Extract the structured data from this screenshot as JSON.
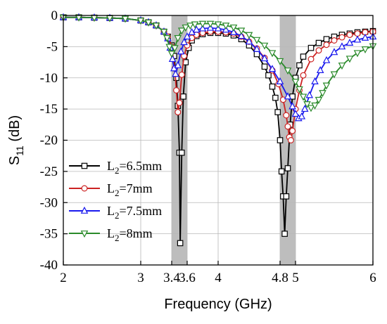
{
  "chart_data": {
    "type": "line",
    "title": "",
    "xlabel": "Frequency (GHz)",
    "ylabel_main": "S",
    "ylabel_sub": "11",
    "ylabel_unit": " (dB)",
    "xlim": [
      2,
      6
    ],
    "ylim": [
      -40,
      0
    ],
    "xticks": [
      2,
      3,
      3.4,
      3.6,
      4,
      4.8,
      5,
      6
    ],
    "xtick_labels": [
      "2",
      "3",
      "3.4",
      "3.6",
      "4",
      "4.8",
      "5",
      "6"
    ],
    "yticks": [
      0,
      -5,
      -10,
      -15,
      -20,
      -25,
      -30,
      -35,
      -40
    ],
    "ytick_labels": [
      "0",
      "-5",
      "-10",
      "-15",
      "-20",
      "-25",
      "-30",
      "-35",
      "-40"
    ],
    "grid": true,
    "legend_position": "bottom-left",
    "shaded_bands": [
      [
        3.4,
        3.6
      ],
      [
        4.8,
        5.0
      ]
    ],
    "band_color": "#bdbdbd",
    "series": [
      {
        "name": "L2=6.5mm",
        "legend_main": "L",
        "legend_sub": "2",
        "legend_value": "=6.5mm",
        "color": "#000000",
        "marker": "square",
        "x": [
          2.0,
          2.2,
          2.4,
          2.6,
          2.8,
          3.0,
          3.1,
          3.2,
          3.3,
          3.35,
          3.4,
          3.43,
          3.46,
          3.48,
          3.5,
          3.51,
          3.53,
          3.55,
          3.58,
          3.62,
          3.66,
          3.72,
          3.8,
          3.9,
          4.0,
          4.1,
          4.2,
          4.3,
          4.4,
          4.5,
          4.6,
          4.65,
          4.7,
          4.74,
          4.77,
          4.8,
          4.82,
          4.84,
          4.86,
          4.88,
          4.9,
          4.93,
          4.96,
          5.0,
          5.05,
          5.1,
          5.2,
          5.3,
          5.4,
          5.5,
          5.6,
          5.7,
          5.8,
          5.9,
          6.0
        ],
        "y": [
          -0.3,
          -0.3,
          -0.35,
          -0.4,
          -0.5,
          -0.8,
          -1.1,
          -1.6,
          -2.6,
          -3.4,
          -4.8,
          -6.5,
          -10.0,
          -14.5,
          -22.0,
          -36.5,
          -22.0,
          -13.0,
          -7.5,
          -5.2,
          -4.0,
          -3.3,
          -3.0,
          -2.8,
          -2.8,
          -2.9,
          -3.2,
          -3.8,
          -4.8,
          -6.2,
          -8.2,
          -9.6,
          -11.4,
          -13.2,
          -15.5,
          -20.0,
          -25.0,
          -29.0,
          -35.0,
          -29.0,
          -24.5,
          -17.5,
          -13.0,
          -10.0,
          -8.0,
          -6.6,
          -5.2,
          -4.4,
          -3.8,
          -3.4,
          -3.1,
          -2.9,
          -2.7,
          -2.6,
          -2.5
        ]
      },
      {
        "name": "L2=7mm",
        "legend_main": "L",
        "legend_sub": "2",
        "legend_value": "=7mm",
        "color": "#cc2222",
        "marker": "circle",
        "x": [
          2.0,
          2.2,
          2.4,
          2.6,
          2.8,
          3.0,
          3.1,
          3.2,
          3.3,
          3.35,
          3.4,
          3.44,
          3.46,
          3.48,
          3.5,
          3.53,
          3.56,
          3.6,
          3.66,
          3.72,
          3.8,
          3.9,
          4.0,
          4.1,
          4.2,
          4.3,
          4.4,
          4.5,
          4.6,
          4.7,
          4.78,
          4.84,
          4.88,
          4.9,
          4.92,
          4.94,
          4.96,
          5.0,
          5.05,
          5.1,
          5.2,
          5.3,
          5.4,
          5.5,
          5.6,
          5.7,
          5.8,
          5.9,
          6.0
        ],
        "y": [
          -0.3,
          -0.3,
          -0.35,
          -0.4,
          -0.5,
          -0.8,
          -1.1,
          -1.6,
          -2.6,
          -3.4,
          -5.0,
          -8.5,
          -12.0,
          -15.5,
          -14.0,
          -9.5,
          -6.5,
          -4.8,
          -3.6,
          -3.1,
          -2.8,
          -2.6,
          -2.6,
          -2.7,
          -2.9,
          -3.4,
          -4.2,
          -5.3,
          -6.8,
          -8.8,
          -11.0,
          -13.5,
          -16.0,
          -17.8,
          -19.5,
          -20.0,
          -18.5,
          -15.0,
          -12.0,
          -9.6,
          -7.0,
          -5.6,
          -4.7,
          -4.0,
          -3.5,
          -3.1,
          -2.9,
          -2.7,
          -2.6
        ]
      },
      {
        "name": "L2=7.5mm",
        "legend_main": "L",
        "legend_sub": "2",
        "legend_value": "=7.5mm",
        "color": "#1a1aee",
        "marker": "triangle-up",
        "x": [
          2.0,
          2.2,
          2.4,
          2.6,
          2.8,
          3.0,
          3.1,
          3.2,
          3.3,
          3.35,
          3.38,
          3.41,
          3.43,
          3.45,
          3.48,
          3.52,
          3.56,
          3.6,
          3.66,
          3.72,
          3.8,
          3.9,
          4.0,
          4.1,
          4.2,
          4.3,
          4.4,
          4.5,
          4.6,
          4.7,
          4.8,
          4.9,
          4.96,
          5.0,
          5.04,
          5.08,
          5.12,
          5.18,
          5.25,
          5.32,
          5.4,
          5.5,
          5.6,
          5.7,
          5.8,
          5.9,
          6.0
        ],
        "y": [
          -0.3,
          -0.3,
          -0.35,
          -0.4,
          -0.5,
          -0.8,
          -1.1,
          -1.6,
          -2.6,
          -3.7,
          -5.2,
          -7.0,
          -8.5,
          -9.4,
          -8.0,
          -5.8,
          -4.3,
          -3.4,
          -2.7,
          -2.3,
          -2.1,
          -2.0,
          -2.1,
          -2.3,
          -2.7,
          -3.3,
          -4.2,
          -5.4,
          -6.9,
          -8.6,
          -10.6,
          -13.0,
          -14.6,
          -15.8,
          -16.5,
          -16.2,
          -15.0,
          -12.8,
          -10.6,
          -8.8,
          -7.2,
          -5.9,
          -5.0,
          -4.4,
          -3.9,
          -3.6,
          -3.4
        ]
      },
      {
        "name": "L2=8mm",
        "legend_main": "L",
        "legend_sub": "2",
        "legend_value": "=8mm",
        "color": "#2a8a2a",
        "marker": "triangle-down",
        "x": [
          2.0,
          2.2,
          2.4,
          2.6,
          2.8,
          3.0,
          3.1,
          3.2,
          3.3,
          3.34,
          3.37,
          3.4,
          3.44,
          3.48,
          3.53,
          3.58,
          3.64,
          3.7,
          3.8,
          3.9,
          4.0,
          4.1,
          4.2,
          4.3,
          4.4,
          4.5,
          4.6,
          4.7,
          4.8,
          4.9,
          5.0,
          5.05,
          5.1,
          5.15,
          5.2,
          5.25,
          5.3,
          5.35,
          5.4,
          5.5,
          5.6,
          5.7,
          5.8,
          5.9,
          6.0
        ],
        "y": [
          -0.3,
          -0.3,
          -0.35,
          -0.4,
          -0.5,
          -0.8,
          -1.1,
          -1.6,
          -2.6,
          -3.6,
          -5.0,
          -6.1,
          -5.2,
          -3.6,
          -2.4,
          -1.9,
          -1.6,
          -1.4,
          -1.3,
          -1.3,
          -1.4,
          -1.6,
          -1.9,
          -2.4,
          -3.1,
          -3.9,
          -4.8,
          -6.0,
          -7.3,
          -8.8,
          -10.6,
          -11.8,
          -13.0,
          -14.2,
          -14.8,
          -14.4,
          -13.5,
          -12.4,
          -11.2,
          -9.4,
          -8.0,
          -6.9,
          -6.0,
          -5.4,
          -4.9
        ]
      }
    ]
  }
}
